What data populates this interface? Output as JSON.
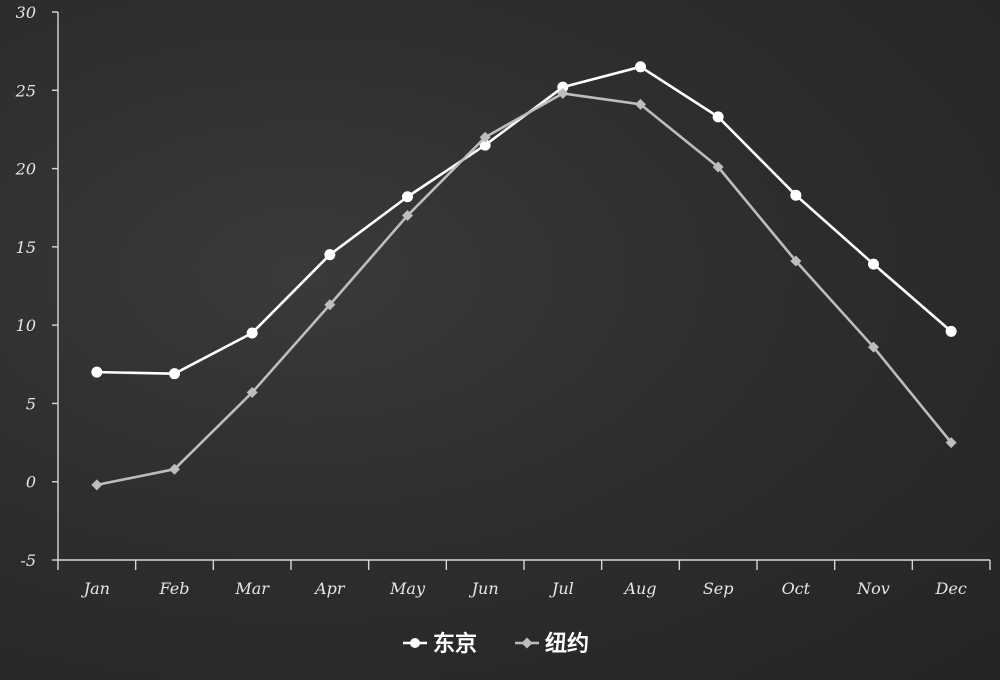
{
  "chart_data": {
    "type": "line",
    "title": "",
    "xlabel": "",
    "ylabel": "",
    "categories": [
      "Jan",
      "Feb",
      "Mar",
      "Apr",
      "May",
      "Jun",
      "Jul",
      "Aug",
      "Sep",
      "Oct",
      "Nov",
      "Dec"
    ],
    "ylim": [
      -5,
      30
    ],
    "yticks": [
      -5,
      0,
      5,
      10,
      15,
      20,
      25,
      30
    ],
    "grid": false,
    "legend_position": "bottom-center",
    "series": [
      {
        "name": "东京",
        "marker": "circle",
        "color": "#ffffff",
        "values": [
          7.0,
          6.9,
          9.5,
          14.5,
          18.2,
          21.5,
          25.2,
          26.5,
          23.3,
          18.3,
          13.9,
          9.6
        ]
      },
      {
        "name": "纽约",
        "marker": "diamond",
        "color": "#bdbdbd",
        "values": [
          -0.2,
          0.8,
          5.7,
          11.3,
          17.0,
          22.0,
          24.8,
          24.1,
          20.1,
          14.1,
          8.6,
          2.5
        ]
      }
    ]
  }
}
